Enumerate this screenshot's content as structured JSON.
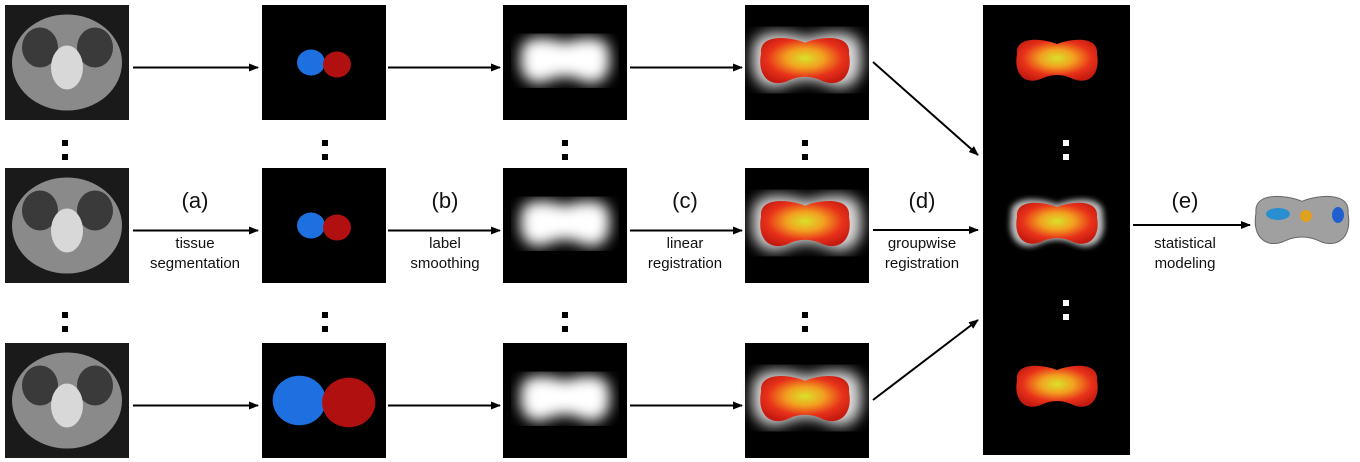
{
  "steps": [
    {
      "label": "(a)",
      "description": [
        "tissue",
        "segmentation"
      ]
    },
    {
      "label": "(b)",
      "description": [
        "label",
        "smoothing"
      ]
    },
    {
      "label": "(c)",
      "description": [
        "linear",
        "registration"
      ]
    },
    {
      "label": "(d)",
      "description": [
        "groupwise",
        "registration"
      ]
    },
    {
      "label": "(e)",
      "description": [
        "statistical",
        "modeling"
      ]
    }
  ]
}
